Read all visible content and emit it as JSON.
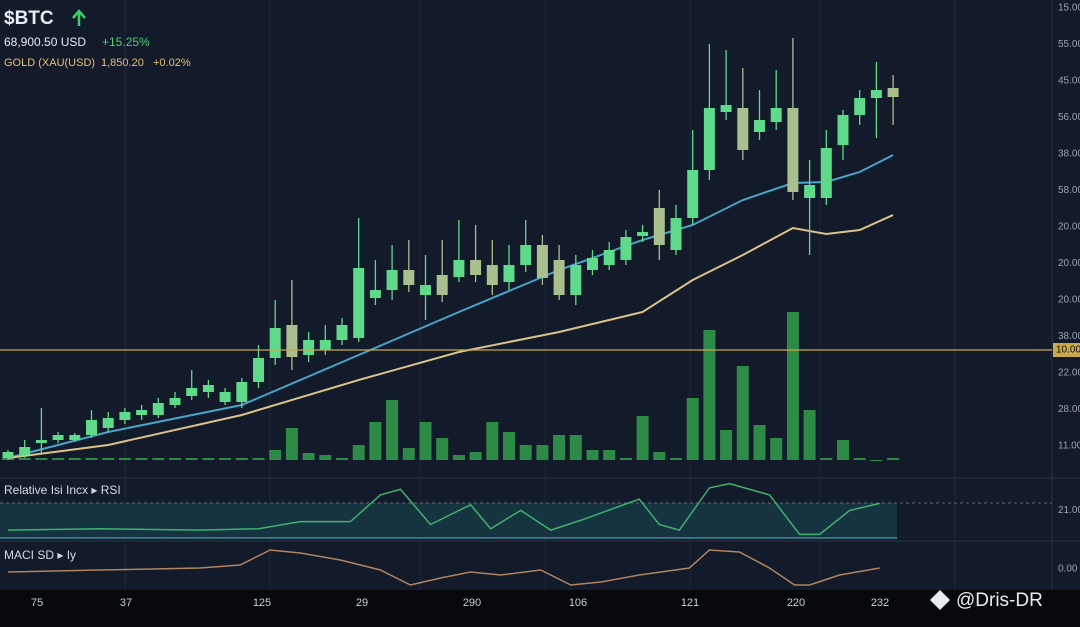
{
  "header": {
    "symbol": "$BTC",
    "price": "68,900.50 USD",
    "change": "+15.25%",
    "gold_label": "GOLD (XAU(USD)",
    "gold_price": "1,850.20",
    "gold_change": "+0.02%"
  },
  "watermark": "@Dris-DR",
  "chart_data": [
    {
      "type": "candlestick",
      "up_color": "#5fd98a",
      "down_color": "#aabf8e",
      "ylim": [
        0,
        450
      ],
      "open": [
        2,
        5,
        17,
        20,
        20,
        25,
        32,
        40,
        45,
        45,
        55,
        64,
        68,
        58,
        58,
        78,
        102,
        135,
        105,
        110,
        120,
        122,
        162,
        170,
        190,
        165,
        185,
        183,
        200,
        195,
        178,
        195,
        215,
        200,
        165,
        190,
        195,
        200,
        224,
        252,
        210,
        242,
        290,
        348,
        352,
        328,
        338,
        352,
        262,
        262,
        315,
        345,
        362,
        372
      ],
      "close": [
        8,
        13,
        20,
        25,
        25,
        40,
        42,
        48,
        50,
        57,
        62,
        72,
        75,
        68,
        78,
        102,
        132,
        103,
        120,
        120,
        135,
        192,
        170,
        190,
        175,
        175,
        165,
        200,
        185,
        175,
        195,
        215,
        182,
        165,
        195,
        202,
        210,
        223,
        228,
        215,
        242,
        290,
        352,
        355,
        310,
        340,
        352,
        268,
        275,
        312,
        345,
        362,
        370,
        363
      ],
      "high": [
        10,
        20,
        52,
        28,
        27,
        50,
        48,
        52,
        55,
        62,
        68,
        90,
        80,
        72,
        82,
        115,
        160,
        180,
        128,
        135,
        142,
        242,
        200,
        215,
        220,
        205,
        220,
        240,
        235,
        220,
        215,
        240,
        225,
        215,
        205,
        210,
        218,
        230,
        235,
        270,
        255,
        330,
        416,
        410,
        392,
        370,
        390,
        422,
        300,
        330,
        350,
        370,
        398,
        385
      ],
      "low": [
        0,
        2,
        5,
        17,
        18,
        22,
        28,
        36,
        40,
        42,
        52,
        60,
        62,
        55,
        52,
        72,
        95,
        90,
        98,
        105,
        115,
        118,
        155,
        160,
        168,
        140,
        158,
        178,
        178,
        165,
        170,
        188,
        175,
        160,
        155,
        185,
        190,
        195,
        218,
        200,
        205,
        235,
        280,
        340,
        300,
        320,
        330,
        260,
        205,
        255,
        300,
        335,
        322,
        335
      ],
      "ma": [
        {
          "color": "#4aa3c8",
          "x": [
            0,
            6,
            14,
            21,
            27,
            33,
            38,
            41,
            44,
            47,
            49,
            51,
            53
          ],
          "values": [
            2,
            28,
            55,
            105,
            148,
            190,
            220,
            235,
            260,
            277,
            278,
            288,
            305
          ]
        },
        {
          "color": "#d9c38a",
          "x": [
            0,
            6,
            14,
            21,
            27,
            33,
            38,
            41,
            44,
            47,
            49,
            51,
            53
          ],
          "values": [
            2,
            15,
            45,
            80,
            108,
            128,
            148,
            180,
            205,
            232,
            226,
            230,
            245
          ]
        }
      ],
      "volume": {
        "color": "#2e8b47",
        "ylim": [
          0,
          450
        ],
        "values": [
          2,
          2,
          2,
          2,
          2,
          2,
          2,
          2,
          2,
          2,
          2,
          2,
          2,
          2,
          2,
          2,
          10,
          32,
          7,
          5,
          2,
          15,
          38,
          60,
          12,
          38,
          22,
          5,
          8,
          38,
          28,
          15,
          15,
          25,
          25,
          10,
          10,
          2,
          44,
          8,
          2,
          62,
          130,
          30,
          94,
          35,
          22,
          148,
          50,
          2,
          20,
          2,
          0,
          2
        ]
      },
      "hline": {
        "value": 110,
        "label": "10.00",
        "color": "#c9a94a"
      },
      "price_axis_labels": [
        "15.00",
        "55.00",
        "45.00",
        "56.00",
        "38.00",
        "58.00",
        "20.00",
        "20.00",
        "20.00",
        "38.00",
        "22.00",
        "28.00",
        "11.00"
      ],
      "x_labels": [
        "75",
        "37",
        "125",
        "29",
        "290",
        "106",
        "121",
        "220",
        "232"
      ]
    },
    {
      "type": "line",
      "title": "Relative Isi Incx ▸ RSI",
      "color": "#3fb070",
      "ylim": [
        0,
        44
      ],
      "yticks": [
        {
          "value": 21,
          "label": "21.00"
        }
      ],
      "x": [
        0,
        5.5,
        11.5,
        15,
        17.5,
        20.5,
        22.3,
        23.5,
        25.3,
        27.7,
        28.9,
        30.7,
        32.5,
        34.3,
        37.8,
        39,
        40.2,
        42,
        43.2,
        45.6,
        47.4,
        48.6,
        50.4,
        52.2
      ],
      "values": [
        7,
        8,
        7,
        8,
        13,
        13,
        32,
        36,
        11,
        25,
        8,
        21,
        7,
        14,
        29,
        11,
        7,
        37,
        40,
        32,
        4,
        4,
        21,
        26
      ]
    },
    {
      "type": "line",
      "title": "MACI SD ▸ Iy",
      "color": "#b08560",
      "ylim": [
        -16,
        27
      ],
      "yticks": [
        {
          "value": 0,
          "label": "0.00"
        }
      ],
      "x": [
        0,
        5.5,
        11.5,
        13.9,
        15.7,
        17.5,
        19.9,
        22.3,
        24.1,
        25.9,
        27.7,
        29.5,
        31.9,
        33.7,
        35.5,
        37.8,
        40.8,
        42,
        43.8,
        45.6,
        47.1,
        48,
        49.8,
        52.2
      ],
      "values": [
        -3,
        -1,
        1,
        4,
        19,
        16,
        9,
        -1,
        -16,
        -9,
        -3,
        -6,
        -1,
        -16,
        -13,
        -6,
        1,
        19,
        17,
        1,
        -16,
        -16,
        -6,
        1
      ]
    }
  ]
}
